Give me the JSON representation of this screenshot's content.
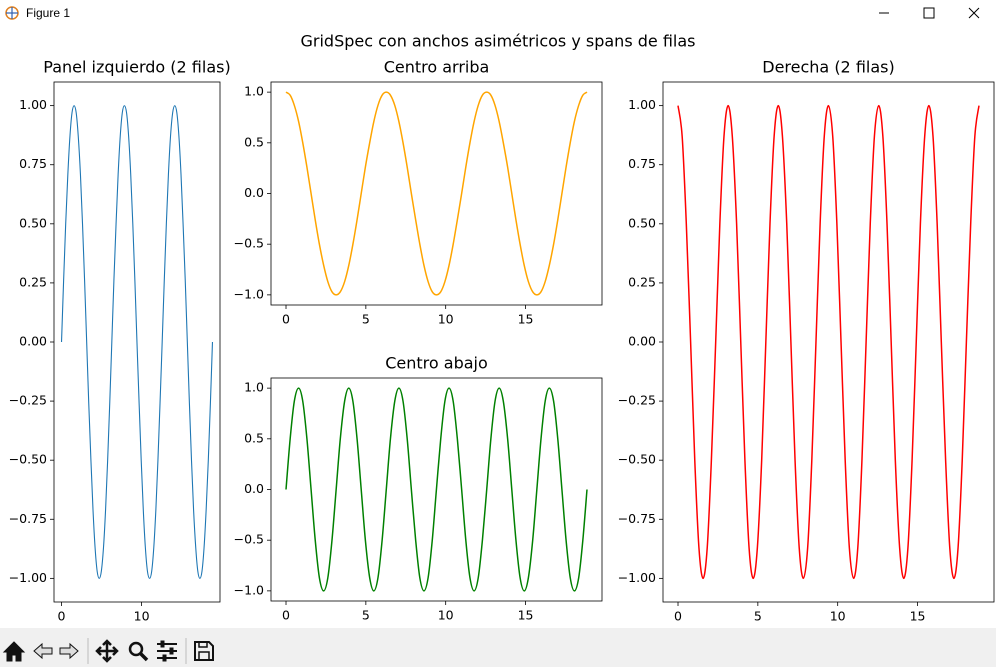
{
  "window_title": "Figure 1",
  "suptitle": "GridSpec con anchos asimétricos y spans de filas",
  "chart_data": [
    {
      "type": "line",
      "title": "Panel izquierdo (2 filas)",
      "color": "#1f77b4",
      "x": [
        0,
        0.26,
        0.52,
        0.79,
        1.05,
        1.31,
        1.57,
        1.83,
        2.09,
        2.36,
        2.62,
        2.88,
        3.14,
        3.4,
        3.67,
        3.93,
        4.19,
        4.45,
        4.71,
        4.97,
        5.24,
        5.5,
        5.76,
        6.02,
        6.28,
        6.54,
        6.81,
        7.07,
        7.33,
        7.59,
        7.85,
        8.12,
        8.38,
        8.64,
        8.9,
        9.16,
        9.42,
        9.69,
        9.95,
        10.21,
        10.47,
        10.73,
        11.0,
        11.26,
        11.52,
        11.78,
        12.04,
        12.3,
        12.57,
        12.83,
        13.09,
        13.35,
        13.61,
        13.88,
        14.14,
        14.4,
        14.66,
        14.92,
        15.18,
        15.45,
        15.71,
        15.97,
        16.23,
        16.49,
        16.76,
        17.02,
        17.28,
        17.54,
        17.8,
        18.06,
        18.33,
        18.59,
        18.85
      ],
      "values": [
        0,
        0.26,
        0.5,
        0.71,
        0.87,
        0.97,
        1,
        0.97,
        0.87,
        0.71,
        0.5,
        0.26,
        0,
        -0.26,
        -0.5,
        -0.71,
        -0.87,
        -0.97,
        -1,
        -0.97,
        -0.87,
        -0.71,
        -0.5,
        -0.26,
        0,
        0.26,
        0.5,
        0.71,
        0.87,
        0.97,
        1,
        0.97,
        0.87,
        0.71,
        0.5,
        0.26,
        0,
        -0.26,
        -0.5,
        -0.71,
        -0.87,
        -0.97,
        -1,
        -0.97,
        -0.87,
        -0.71,
        -0.5,
        -0.26,
        0,
        0.26,
        0.5,
        0.71,
        0.87,
        0.97,
        1,
        0.97,
        0.87,
        0.71,
        0.5,
        0.26,
        0,
        -0.26,
        -0.5,
        -0.71,
        -0.87,
        -0.97,
        -1,
        -0.97,
        -0.87,
        -0.71,
        -0.5,
        -0.26,
        0
      ],
      "xlim": [
        -0.94,
        19.79
      ],
      "ylim": [
        -1.1,
        1.1
      ],
      "xticks": [
        0,
        10
      ],
      "yticks": [
        {
          "value": -1,
          "label": "−1.00"
        },
        {
          "value": -0.75,
          "label": "−0.75"
        },
        {
          "value": -0.5,
          "label": "−0.50"
        },
        {
          "value": -0.25,
          "label": "−0.25"
        },
        {
          "value": 0,
          "label": "0.00"
        },
        0.25,
        {
          "value": 0.5,
          "label": "0.50"
        },
        0.75,
        {
          "value": 1,
          "label": "1.00"
        }
      ]
    },
    {
      "type": "line",
      "title": "Centro arriba",
      "color": "#ffa500",
      "x": [
        0,
        0.26,
        0.52,
        0.79,
        1.05,
        1.31,
        1.57,
        1.83,
        2.09,
        2.36,
        2.62,
        2.88,
        3.14,
        3.4,
        3.67,
        3.93,
        4.19,
        4.45,
        4.71,
        4.97,
        5.24,
        5.5,
        5.76,
        6.02,
        6.28,
        6.54,
        6.81,
        7.07,
        7.33,
        7.59,
        7.85,
        8.12,
        8.38,
        8.64,
        8.9,
        9.16,
        9.42,
        9.69,
        9.95,
        10.21,
        10.47,
        10.73,
        11.0,
        11.26,
        11.52,
        11.78,
        12.04,
        12.3,
        12.57,
        12.83,
        13.09,
        13.35,
        13.61,
        13.88,
        14.14,
        14.4,
        14.66,
        14.92,
        15.18,
        15.45,
        15.71,
        15.97,
        16.23,
        16.49,
        16.76,
        17.02,
        17.28,
        17.54,
        17.8,
        18.06,
        18.33,
        18.59,
        18.85
      ],
      "values": [
        1,
        0.97,
        0.87,
        0.71,
        0.5,
        0.26,
        0,
        -0.26,
        -0.5,
        -0.71,
        -0.87,
        -0.97,
        -1,
        -0.97,
        -0.87,
        -0.71,
        -0.5,
        -0.26,
        0,
        0.26,
        0.5,
        0.71,
        0.87,
        0.97,
        1,
        0.97,
        0.87,
        0.71,
        0.5,
        0.26,
        0,
        -0.26,
        -0.5,
        -0.71,
        -0.87,
        -0.97,
        -1,
        -0.97,
        -0.87,
        -0.71,
        -0.5,
        -0.26,
        0,
        0.26,
        0.5,
        0.71,
        0.87,
        0.97,
        1,
        0.97,
        0.87,
        0.71,
        0.5,
        0.26,
        0,
        -0.26,
        -0.5,
        -0.71,
        -0.87,
        -0.97,
        -1,
        -0.97,
        -0.87,
        -0.71,
        -0.5,
        -0.26,
        0,
        0.26,
        0.5,
        0.71,
        0.87,
        0.97,
        1
      ],
      "xlim": [
        -0.94,
        19.79
      ],
      "ylim": [
        -1.1,
        1.1
      ],
      "xticks": [
        0,
        5,
        10,
        15
      ],
      "yticks": [
        {
          "value": -1,
          "label": "−1.0"
        },
        {
          "value": -0.5,
          "label": "−0.5"
        },
        {
          "value": 0,
          "label": "0.0"
        },
        0.5,
        {
          "value": 1,
          "label": "1.0"
        }
      ]
    },
    {
      "type": "line",
      "title": "Centro abajo",
      "color": "#008000",
      "x": [
        0,
        0.26,
        0.52,
        0.79,
        1.05,
        1.31,
        1.57,
        1.83,
        2.09,
        2.36,
        2.62,
        2.88,
        3.14,
        3.4,
        3.67,
        3.93,
        4.19,
        4.45,
        4.71,
        4.97,
        5.24,
        5.5,
        5.76,
        6.02,
        6.28,
        6.54,
        6.81,
        7.07,
        7.33,
        7.59,
        7.85,
        8.12,
        8.38,
        8.64,
        8.9,
        9.16,
        9.42,
        9.69,
        9.95,
        10.21,
        10.47,
        10.73,
        11.0,
        11.26,
        11.52,
        11.78,
        12.04,
        12.3,
        12.57,
        12.83,
        13.09,
        13.35,
        13.61,
        13.88,
        14.14,
        14.4,
        14.66,
        14.92,
        15.18,
        15.45,
        15.71,
        15.97,
        16.23,
        16.49,
        16.76,
        17.02,
        17.28,
        17.54,
        17.8,
        18.06,
        18.33,
        18.59,
        18.85
      ],
      "values": [
        0,
        0.5,
        0.87,
        1,
        0.87,
        0.5,
        0,
        -0.5,
        -0.87,
        -1,
        -0.87,
        -0.5,
        0,
        0.5,
        0.87,
        1,
        0.87,
        0.5,
        0,
        -0.5,
        -0.87,
        -1,
        -0.87,
        -0.5,
        0,
        0.5,
        0.87,
        1,
        0.87,
        0.5,
        0,
        -0.5,
        -0.87,
        -1,
        -0.87,
        -0.5,
        0,
        0.5,
        0.87,
        1,
        0.87,
        0.5,
        0,
        -0.5,
        -0.87,
        -1,
        -0.87,
        -0.5,
        0,
        0.5,
        0.87,
        1,
        0.87,
        0.5,
        0,
        -0.5,
        -0.87,
        -1,
        -0.87,
        -0.5,
        0,
        0.5,
        0.87,
        1,
        0.87,
        0.5,
        0,
        -0.5,
        -0.87,
        -1,
        -0.87,
        -0.5,
        0
      ],
      "xlim": [
        -0.94,
        19.79
      ],
      "ylim": [
        -1.1,
        1.1
      ],
      "xticks": [
        0,
        5,
        10,
        15
      ],
      "yticks": [
        {
          "value": -1,
          "label": "−1.0"
        },
        {
          "value": -0.5,
          "label": "−0.5"
        },
        {
          "value": 0,
          "label": "0.0"
        },
        0.5,
        {
          "value": 1,
          "label": "1.0"
        }
      ]
    },
    {
      "type": "line",
      "title": "Derecha (2 filas)",
      "color": "#ff0000",
      "x": [
        0,
        0.26,
        0.52,
        0.79,
        1.05,
        1.31,
        1.57,
        1.83,
        2.09,
        2.36,
        2.62,
        2.88,
        3.14,
        3.4,
        3.67,
        3.93,
        4.19,
        4.45,
        4.71,
        4.97,
        5.24,
        5.5,
        5.76,
        6.02,
        6.28,
        6.54,
        6.81,
        7.07,
        7.33,
        7.59,
        7.85,
        8.12,
        8.38,
        8.64,
        8.9,
        9.16,
        9.42,
        9.69,
        9.95,
        10.21,
        10.47,
        10.73,
        11.0,
        11.26,
        11.52,
        11.78,
        12.04,
        12.3,
        12.57,
        12.83,
        13.09,
        13.35,
        13.61,
        13.88,
        14.14,
        14.4,
        14.66,
        14.92,
        15.18,
        15.45,
        15.71,
        15.97,
        16.23,
        16.49,
        16.76,
        17.02,
        17.28,
        17.54,
        17.8,
        18.06,
        18.33,
        18.59,
        18.85
      ],
      "values": [
        1,
        0.87,
        0.5,
        0,
        -0.5,
        -0.87,
        -1,
        -0.87,
        -0.5,
        0,
        0.5,
        0.87,
        1,
        0.87,
        0.5,
        0,
        -0.5,
        -0.87,
        -1,
        -0.87,
        -0.5,
        0,
        0.5,
        0.87,
        1,
        0.87,
        0.5,
        0,
        -0.5,
        -0.87,
        -1,
        -0.87,
        -0.5,
        0,
        0.5,
        0.87,
        1,
        0.87,
        0.5,
        0,
        -0.5,
        -0.87,
        -1,
        -0.87,
        -0.5,
        0,
        0.5,
        0.87,
        1,
        0.87,
        0.5,
        0,
        -0.5,
        -0.87,
        -1,
        -0.87,
        -0.5,
        0,
        0.5,
        0.87,
        1,
        0.87,
        0.5,
        0,
        -0.5,
        -0.87,
        -1,
        -0.87,
        -0.5,
        0,
        0.5,
        0.87,
        1
      ],
      "xlim": [
        -0.94,
        19.79
      ],
      "ylim": [
        -1.1,
        1.1
      ],
      "xticks": [
        0,
        5,
        10,
        15
      ],
      "yticks": [
        {
          "value": -1,
          "label": "−1.00"
        },
        {
          "value": -0.75,
          "label": "−0.75"
        },
        {
          "value": -0.5,
          "label": "−0.50"
        },
        {
          "value": -0.25,
          "label": "−0.25"
        },
        {
          "value": 0,
          "label": "0.00"
        },
        0.25,
        {
          "value": 0.5,
          "label": "0.50"
        },
        0.75,
        {
          "value": 1,
          "label": "1.00"
        }
      ]
    }
  ]
}
